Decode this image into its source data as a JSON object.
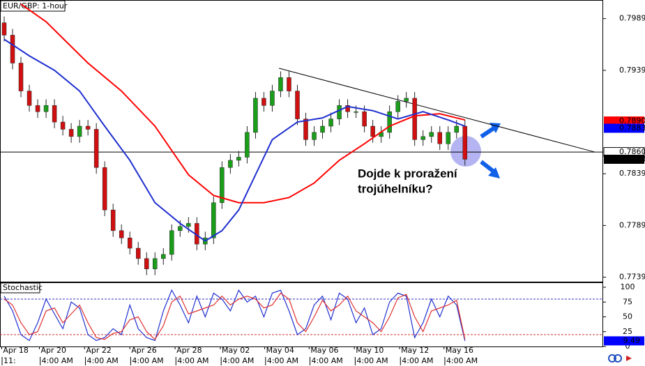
{
  "chart_data": [
    {
      "type": "candlestick",
      "title": "EUR/GBP: 1-hour",
      "up_color": "#1a9e1a",
      "down_color": "#d01010",
      "xlim": [
        -0.5,
        71.5
      ],
      "ylim": [
        0.7734,
        0.8007
      ],
      "yticks": [
        0.7739,
        0.7789,
        0.7839,
        0.7939,
        0.7989
      ],
      "open": [
        0.7985,
        0.7973,
        0.7946,
        0.7919,
        0.7905,
        0.7899,
        0.7905,
        0.7889,
        0.7882,
        0.7875,
        0.7885,
        0.7882,
        0.7845,
        0.7804,
        0.7784,
        0.7777,
        0.7767,
        0.7757,
        0.7747,
        0.7757,
        0.7761,
        0.7784,
        0.7788,
        0.7791,
        0.7771,
        0.7777,
        0.7811,
        0.7845,
        0.7852,
        0.7855,
        0.7879,
        0.7912,
        0.7905,
        0.7919,
        0.7932,
        0.7919,
        0.7892,
        0.7872,
        0.7879,
        0.7885,
        0.7892,
        0.7905,
        0.7899,
        0.7899,
        0.7885,
        0.7875,
        0.7879,
        0.7899,
        0.7909,
        0.7912,
        0.7872,
        0.7875,
        0.7879,
        0.7868,
        0.7879,
        0.7885
      ],
      "high": [
        0.7991,
        0.7979,
        0.7952,
        0.7925,
        0.7911,
        0.7911,
        0.7911,
        0.7895,
        0.7888,
        0.7891,
        0.7891,
        0.7888,
        0.7851,
        0.781,
        0.779,
        0.7783,
        0.7773,
        0.7763,
        0.7763,
        0.7767,
        0.779,
        0.7794,
        0.7797,
        0.7797,
        0.7783,
        0.7817,
        0.7851,
        0.7858,
        0.7861,
        0.7885,
        0.7918,
        0.7918,
        0.7925,
        0.7938,
        0.7938,
        0.7925,
        0.7898,
        0.7885,
        0.7891,
        0.7898,
        0.7911,
        0.7911,
        0.7905,
        0.7905,
        0.7891,
        0.7885,
        0.7905,
        0.7915,
        0.7918,
        0.7918,
        0.7881,
        0.7885,
        0.7885,
        0.7885,
        0.7891,
        0.7891
      ],
      "low": [
        0.7967,
        0.794,
        0.7913,
        0.7899,
        0.7893,
        0.7893,
        0.7883,
        0.7876,
        0.7869,
        0.7869,
        0.7876,
        0.7839,
        0.7798,
        0.7778,
        0.7771,
        0.7761,
        0.7751,
        0.7741,
        0.7741,
        0.7751,
        0.7755,
        0.7778,
        0.7782,
        0.7765,
        0.7765,
        0.7771,
        0.7805,
        0.7839,
        0.7846,
        0.7849,
        0.7873,
        0.7899,
        0.7899,
        0.7913,
        0.7913,
        0.7886,
        0.7866,
        0.7866,
        0.7873,
        0.7879,
        0.7886,
        0.7893,
        0.7893,
        0.7879,
        0.7869,
        0.7869,
        0.7873,
        0.7893,
        0.7903,
        0.7866,
        0.7866,
        0.7869,
        0.7862,
        0.7862,
        0.7873,
        0.7847
      ],
      "close": [
        0.7973,
        0.7946,
        0.7919,
        0.7905,
        0.7899,
        0.7905,
        0.7889,
        0.7882,
        0.7875,
        0.7885,
        0.7882,
        0.7845,
        0.7804,
        0.7784,
        0.7777,
        0.7767,
        0.7757,
        0.7747,
        0.7757,
        0.7761,
        0.7784,
        0.7788,
        0.7791,
        0.7771,
        0.7777,
        0.7811,
        0.7845,
        0.7852,
        0.7855,
        0.7879,
        0.7912,
        0.7905,
        0.7919,
        0.7932,
        0.7919,
        0.7892,
        0.7872,
        0.7879,
        0.7885,
        0.7892,
        0.7905,
        0.7899,
        0.7899,
        0.7885,
        0.7875,
        0.7879,
        0.7899,
        0.7909,
        0.7912,
        0.7872,
        0.7875,
        0.7879,
        0.7868,
        0.7879,
        0.7885,
        0.7853
      ],
      "series": [
        {
          "color": "#ff0000",
          "x": [
            2,
            5,
            10,
            14,
            18,
            22,
            25,
            28,
            31,
            34,
            37,
            40,
            43,
            46,
            49,
            52,
            55
          ],
          "values": [
            0.8003,
            0.7986,
            0.7946,
            0.7919,
            0.7885,
            0.7838,
            0.7818,
            0.7811,
            0.7811,
            0.7816,
            0.783,
            0.7852,
            0.7868,
            0.7885,
            0.7895,
            0.7897,
            0.7891
          ]
        },
        {
          "color": "#1f2fd0",
          "x": [
            0,
            3,
            6,
            9,
            12,
            15,
            18,
            21,
            24,
            26,
            28,
            30,
            32,
            35,
            38,
            41,
            44,
            47,
            50,
            53,
            55
          ],
          "values": [
            0.7969,
            0.7953,
            0.7939,
            0.7919,
            0.7885,
            0.7852,
            0.7811,
            0.7791,
            0.7774,
            0.7784,
            0.7804,
            0.7838,
            0.7872,
            0.7889,
            0.7893,
            0.7904,
            0.79,
            0.7892,
            0.7899,
            0.7891,
            0.7885
          ]
        }
      ],
      "hline": 0.786,
      "trendline": {
        "x": [
          32.8,
          70.5
        ],
        "values": [
          0.7941,
          0.786
        ]
      },
      "price_labels": [
        {
          "value": 0.789,
          "label": "0.7890",
          "color": "#ff0000"
        },
        {
          "value": 0.7883,
          "label": "0.7883",
          "color": "#0000ff"
        },
        {
          "value": 0.786,
          "label": "0.7860",
          "color": "#ffffff"
        },
        {
          "value": 0.7853,
          "label": "0.7853",
          "color": "#000000"
        }
      ],
      "annotation": [
        "Dojde k proražení",
        "trojúhelníku?"
      ]
    },
    {
      "type": "stochastic",
      "title": "Stochastic",
      "xlim": [
        -0.5,
        71.5
      ],
      "ylim": [
        0,
        100
      ],
      "yticks": [
        0,
        25,
        50,
        75,
        100
      ],
      "levels": [
        {
          "value": 80,
          "color": "#3030c0"
        },
        {
          "value": 20,
          "color": "#d03030"
        }
      ],
      "series": [
        {
          "color": "#2030d0",
          "values": [
            85,
            60,
            20,
            10,
            40,
            80,
            55,
            30,
            75,
            65,
            20,
            10,
            15,
            30,
            20,
            70,
            30,
            15,
            10,
            60,
            95,
            70,
            40,
            85,
            50,
            90,
            80,
            60,
            95,
            75,
            85,
            50,
            90,
            95,
            60,
            20,
            30,
            70,
            85,
            45,
            90,
            80,
            40,
            65,
            20,
            30,
            75,
            90,
            85,
            15,
            40,
            80,
            50,
            85,
            70,
            9.49
          ]
        },
        {
          "color": "#e03030",
          "values": [
            80,
            70,
            40,
            20,
            25,
            60,
            65,
            40,
            55,
            70,
            40,
            15,
            12,
            22,
            25,
            45,
            50,
            25,
            12,
            35,
            75,
            85,
            55,
            60,
            65,
            70,
            85,
            70,
            80,
            85,
            80,
            65,
            70,
            90,
            80,
            40,
            25,
            50,
            78,
            60,
            70,
            85,
            60,
            50,
            40,
            25,
            50,
            82,
            88,
            50,
            25,
            60,
            65,
            70,
            78,
            12
          ]
        }
      ],
      "value_label": 9.49,
      "xticks": [
        {
          "value": -0.3,
          "label": "Apr 18"
        },
        {
          "value": 4.2,
          "label": "Apr 20"
        },
        {
          "value": 9.6,
          "label": "Apr 22"
        },
        {
          "value": 15,
          "label": "Apr 26"
        },
        {
          "value": 20.4,
          "label": "Apr 28"
        },
        {
          "value": 25.8,
          "label": "May 02"
        },
        {
          "value": 31.1,
          "label": "May 04"
        },
        {
          "value": 36.4,
          "label": "May 06"
        },
        {
          "value": 41.8,
          "label": "May 10"
        },
        {
          "value": 47.2,
          "label": "May 12"
        },
        {
          "value": 52.5,
          "label": "May 16"
        }
      ],
      "xticks_time": [
        {
          "value": -0.25,
          "label": "11:"
        },
        {
          "value": 4.3,
          "label": "4:00 AM"
        },
        {
          "value": 9.7,
          "label": "4:00 AM"
        },
        {
          "value": 15.1,
          "label": "4:00 AM"
        },
        {
          "value": 20.5,
          "label": "4:00 AM"
        },
        {
          "value": 25.9,
          "label": "4:00 AM"
        },
        {
          "value": 31.2,
          "label": "4:00 AM"
        },
        {
          "value": 36.5,
          "label": "4:00 AM"
        },
        {
          "value": 41.9,
          "label": "4:00 AM"
        },
        {
          "value": 47.3,
          "label": "4:00 AM"
        },
        {
          "value": 52.6,
          "label": "4:00 AM"
        }
      ]
    }
  ]
}
